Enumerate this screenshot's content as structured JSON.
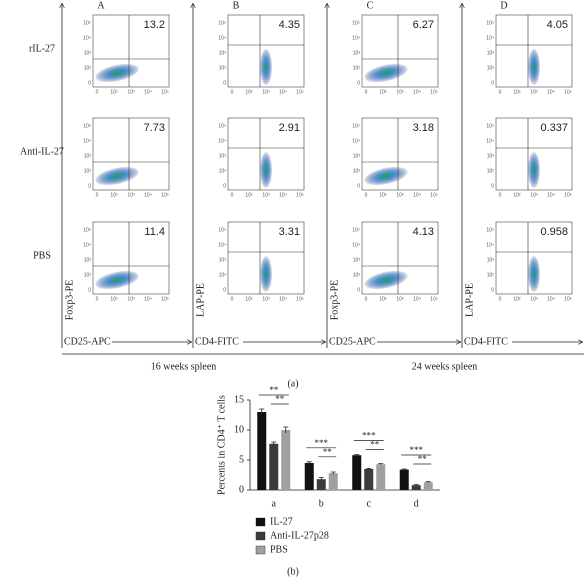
{
  "panel_a": {
    "label": "(a)",
    "columns": [
      "A",
      "B",
      "C",
      "D"
    ],
    "rows": [
      "rIL-27",
      "Anti-IL-27",
      "PBS"
    ],
    "x_axis_labels": [
      "CD25-APC",
      "CD4-FITC",
      "CD25-APC",
      "CD4-FITC"
    ],
    "y_axis_labels": [
      "Foxp3-PE",
      "LAP-PE",
      "Foxp3-PE",
      "LAP-PE"
    ],
    "groups": [
      "16 weeks spleen",
      "24 weeks spleen"
    ],
    "ticks": [
      "0",
      "10²",
      "10³",
      "10⁴",
      "10⁵"
    ],
    "values": [
      [
        13.2,
        4.35,
        6.27,
        4.05
      ],
      [
        7.73,
        2.91,
        3.18,
        0.337
      ],
      [
        11.4,
        3.31,
        4.13,
        0.958
      ]
    ]
  },
  "chart_data": {
    "type": "bar",
    "label": "(b)",
    "y_label": "Percents in CD4⁺ T cells",
    "categories": [
      "a",
      "b",
      "c",
      "d"
    ],
    "series": [
      {
        "name": "IL-27",
        "color": "#111111",
        "values": [
          13.0,
          4.5,
          5.8,
          3.4
        ],
        "errors": [
          0.5,
          0.2,
          0.1,
          0.1
        ]
      },
      {
        "name": "Anti-IL-27p28",
        "color": "#3c3c3c",
        "values": [
          7.7,
          1.8,
          3.5,
          0.8
        ],
        "errors": [
          0.3,
          0.3,
          0.1,
          0.1
        ]
      },
      {
        "name": "PBS",
        "color": "#a0a0a0",
        "values": [
          10.0,
          2.8,
          4.3,
          1.3
        ],
        "errors": [
          0.5,
          0.2,
          0.1,
          0.1
        ]
      }
    ],
    "significance": [
      [
        "**",
        "**"
      ],
      [
        "***",
        "**"
      ],
      [
        "***",
        "**"
      ],
      [
        "***",
        "**"
      ]
    ],
    "ylim": [
      0,
      15
    ],
    "yticks": [
      0,
      5,
      10,
      15
    ]
  }
}
